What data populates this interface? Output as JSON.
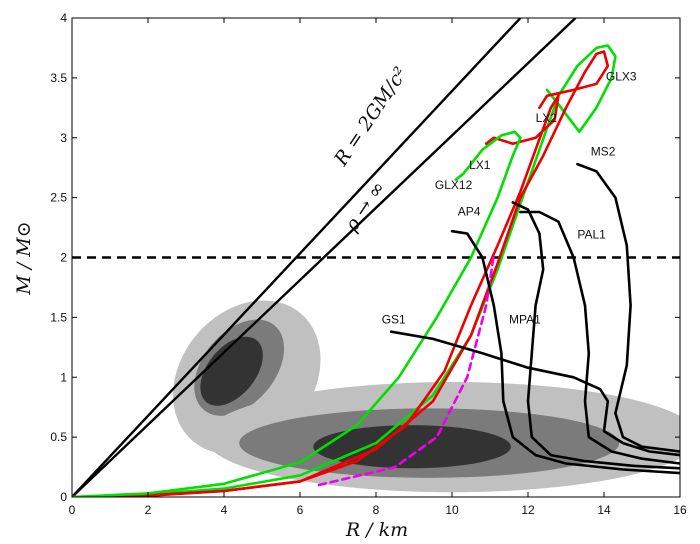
{
  "chart_data": {
    "type": "line",
    "title": "",
    "xlabel": "R / km",
    "ylabel": "M / M⊙",
    "xlim": [
      0,
      16
    ],
    "ylim": [
      0,
      4
    ],
    "x_ticks": [
      0,
      2,
      4,
      6,
      8,
      10,
      12,
      14,
      16
    ],
    "y_ticks": [
      0,
      0.5,
      1,
      1.5,
      2,
      2.5,
      3,
      3.5,
      4
    ],
    "x_tick_labels": [
      "0",
      "2",
      "4",
      "6",
      "8",
      "10",
      "12",
      "14",
      "16"
    ],
    "y_tick_labels": [
      "0",
      "0.5",
      "1",
      "1.5",
      "2",
      "2.5",
      "3",
      "3.5",
      "4"
    ],
    "grid": false,
    "annotations": [
      {
        "text": "R = 2GM/c²",
        "x": 8.0,
        "y": 3.15,
        "angle_deg": -56
      },
      {
        "text": "ρ → ∞",
        "x": 7.85,
        "y": 2.4,
        "angle_deg": -56
      }
    ],
    "lines": [
      {
        "name": "schwarzschild",
        "label": "",
        "color": "#000000",
        "dash": false,
        "width": 2.4,
        "points": [
          [
            0,
            0
          ],
          [
            11.8,
            4.0
          ]
        ]
      },
      {
        "name": "rho-infinity",
        "label": "",
        "color": "#000000",
        "dash": false,
        "width": 2.4,
        "points": [
          [
            0,
            0
          ],
          [
            13.25,
            4.0
          ]
        ]
      },
      {
        "name": "two-solar-mass",
        "label": "",
        "color": "#000000",
        "dash": true,
        "width": 2.6,
        "points": [
          [
            0,
            2.0
          ],
          [
            16,
            2.0
          ]
        ]
      }
    ],
    "confidence_regions": [
      {
        "name": "region-left",
        "levels": [
          {
            "fill": "#c0c0c0",
            "center": [
              4.6,
              1.0
            ],
            "rx": 2.2,
            "ry": 0.55,
            "angle_deg": 50
          },
          {
            "fill": "#7b7b7b",
            "center": [
              4.4,
              1.08
            ],
            "rx": 1.45,
            "ry": 0.3,
            "angle_deg": 50
          },
          {
            "fill": "#333333",
            "center": [
              4.2,
              1.05
            ],
            "rx": 1.05,
            "ry": 0.2,
            "angle_deg": 51
          }
        ]
      },
      {
        "name": "region-bottom",
        "levels": [
          {
            "fill": "#c0c0c0",
            "center": [
              10.0,
              0.5
            ],
            "rx": 6.5,
            "ry": 0.46,
            "angle_deg": 0
          },
          {
            "fill": "#7b7b7b",
            "center": [
              9.4,
              0.45
            ],
            "rx": 5.0,
            "ry": 0.29,
            "angle_deg": 0
          },
          {
            "fill": "#333333",
            "center": [
              8.95,
              0.42
            ],
            "rx": 2.6,
            "ry": 0.18,
            "angle_deg": 0
          }
        ]
      }
    ],
    "series": [
      {
        "name": "GLX3",
        "color": "#00e000",
        "dash": false,
        "points": [
          [
            0,
            0
          ],
          [
            2,
            0.02
          ],
          [
            4,
            0.07
          ],
          [
            6,
            0.18
          ],
          [
            8,
            0.45
          ],
          [
            9.5,
            0.85
          ],
          [
            10.5,
            1.35
          ],
          [
            11.2,
            1.9
          ],
          [
            11.8,
            2.45
          ],
          [
            12.3,
            2.9
          ],
          [
            12.8,
            3.35
          ],
          [
            13.3,
            3.6
          ],
          [
            13.8,
            3.75
          ],
          [
            14.1,
            3.77
          ],
          [
            14.3,
            3.68
          ],
          [
            14.2,
            3.5
          ],
          [
            13.8,
            3.25
          ],
          [
            13.35,
            3.05
          ],
          [
            12.8,
            3.28
          ],
          [
            12.5,
            3.4
          ]
        ]
      },
      {
        "name": "LX2",
        "color": "#ee0000",
        "dash": false,
        "points": [
          [
            0,
            0
          ],
          [
            2,
            0.015
          ],
          [
            4,
            0.05
          ],
          [
            6,
            0.13
          ],
          [
            8,
            0.4
          ],
          [
            9.5,
            0.8
          ],
          [
            10.5,
            1.35
          ],
          [
            11.2,
            1.95
          ],
          [
            11.8,
            2.5
          ],
          [
            12.4,
            2.85
          ],
          [
            13.0,
            3.25
          ],
          [
            13.5,
            3.55
          ],
          [
            13.8,
            3.7
          ],
          [
            14.0,
            3.72
          ],
          [
            14.1,
            3.6
          ],
          [
            13.8,
            3.45
          ],
          [
            13.2,
            3.4
          ],
          [
            12.5,
            3.35
          ],
          [
            12.3,
            3.25
          ]
        ]
      },
      {
        "name": "LX1",
        "color": "#ee0000",
        "dash": false,
        "points": [
          [
            0,
            0
          ],
          [
            2,
            0.01
          ],
          [
            4,
            0.05
          ],
          [
            6,
            0.13
          ],
          [
            7.5,
            0.3
          ],
          [
            8.8,
            0.6
          ],
          [
            9.8,
            1.05
          ],
          [
            10.5,
            1.6
          ],
          [
            11.2,
            2.1
          ],
          [
            11.8,
            2.55
          ],
          [
            12.2,
            2.9
          ],
          [
            12.6,
            3.25
          ],
          [
            12.8,
            3.35
          ],
          [
            12.7,
            3.15
          ],
          [
            12.2,
            3.0
          ],
          [
            11.6,
            2.95
          ],
          [
            11.1,
            3.0
          ],
          [
            10.9,
            2.95
          ]
        ]
      },
      {
        "name": "GLX12",
        "color": "#00e000",
        "dash": false,
        "points": [
          [
            0,
            0
          ],
          [
            2,
            0.03
          ],
          [
            4,
            0.11
          ],
          [
            6,
            0.29
          ],
          [
            7.5,
            0.6
          ],
          [
            8.6,
            1.0
          ],
          [
            9.6,
            1.5
          ],
          [
            10.5,
            2.0
          ],
          [
            11.2,
            2.5
          ],
          [
            11.6,
            2.85
          ],
          [
            11.8,
            3.0
          ],
          [
            11.65,
            3.05
          ],
          [
            11.3,
            3.02
          ],
          [
            10.8,
            2.9
          ],
          [
            10.3,
            2.7
          ],
          [
            10.1,
            2.65
          ]
        ]
      },
      {
        "name": "MPA1",
        "color": "#ee00ee",
        "dash": true,
        "points": [
          [
            6.5,
            0.1
          ],
          [
            8.5,
            0.25
          ],
          [
            9.6,
            0.5
          ],
          [
            10.4,
            1.0
          ],
          [
            10.9,
            1.6
          ],
          [
            11.1,
            2.02
          ]
        ]
      },
      {
        "name": "AP4",
        "color": "#000000",
        "dash": false,
        "points": [
          [
            10.0,
            2.22
          ],
          [
            10.4,
            2.2
          ],
          [
            10.8,
            2.0
          ],
          [
            11.1,
            1.6
          ],
          [
            11.3,
            1.2
          ],
          [
            11.35,
            0.8
          ],
          [
            11.6,
            0.5
          ],
          [
            12.2,
            0.35
          ],
          [
            13.0,
            0.28
          ],
          [
            14.5,
            0.23
          ],
          [
            16,
            0.2
          ]
        ]
      },
      {
        "name": "MPA1-black",
        "color": "#000000",
        "dash": false,
        "points": [
          [
            11.6,
            2.46
          ],
          [
            12.0,
            2.4
          ],
          [
            12.3,
            2.2
          ],
          [
            12.4,
            1.9
          ],
          [
            12.2,
            1.6
          ],
          [
            12.1,
            1.2
          ],
          [
            12.0,
            0.8
          ],
          [
            12.1,
            0.5
          ],
          [
            12.6,
            0.35
          ],
          [
            13.5,
            0.3
          ],
          [
            14.8,
            0.26
          ],
          [
            16,
            0.24
          ]
        ]
      },
      {
        "name": "PAL1",
        "color": "#000000",
        "dash": false,
        "points": [
          [
            11.8,
            2.38
          ],
          [
            12.3,
            2.38
          ],
          [
            12.8,
            2.3
          ],
          [
            13.2,
            2.0
          ],
          [
            13.5,
            1.6
          ],
          [
            13.6,
            1.2
          ],
          [
            13.5,
            0.8
          ],
          [
            13.6,
            0.5
          ],
          [
            14.2,
            0.38
          ],
          [
            15.0,
            0.32
          ],
          [
            16,
            0.28
          ]
        ]
      },
      {
        "name": "MS2",
        "color": "#000000",
        "dash": false,
        "points": [
          [
            13.3,
            2.78
          ],
          [
            13.8,
            2.72
          ],
          [
            14.3,
            2.5
          ],
          [
            14.6,
            2.1
          ],
          [
            14.7,
            1.6
          ],
          [
            14.6,
            1.1
          ],
          [
            14.3,
            0.7
          ],
          [
            14.5,
            0.5
          ],
          [
            15.0,
            0.42
          ],
          [
            16,
            0.38
          ]
        ]
      },
      {
        "name": "GS1",
        "color": "#000000",
        "dash": false,
        "points": [
          [
            8.4,
            1.38
          ],
          [
            9.5,
            1.32
          ],
          [
            10.8,
            1.2
          ],
          [
            12.0,
            1.08
          ],
          [
            13.2,
            1.0
          ],
          [
            13.9,
            0.9
          ],
          [
            14.1,
            0.8
          ],
          [
            14.0,
            0.55
          ],
          [
            14.5,
            0.45
          ],
          [
            15.2,
            0.38
          ],
          [
            16,
            0.35
          ]
        ]
      }
    ],
    "curve_labels": [
      {
        "text": "GLX3",
        "x": 14.05,
        "y": 3.48
      },
      {
        "text": "LX2",
        "x": 12.2,
        "y": 3.13
      },
      {
        "text": "MS2",
        "x": 13.65,
        "y": 2.85
      },
      {
        "text": "LX1",
        "x": 10.45,
        "y": 2.74
      },
      {
        "text": "GLX12",
        "x": 9.55,
        "y": 2.57
      },
      {
        "text": "AP4",
        "x": 10.15,
        "y": 2.35
      },
      {
        "text": "PAL1",
        "x": 13.3,
        "y": 2.16
      },
      {
        "text": "GS1",
        "x": 8.15,
        "y": 1.45
      },
      {
        "text": "MPA1",
        "x": 11.5,
        "y": 1.45
      }
    ]
  }
}
